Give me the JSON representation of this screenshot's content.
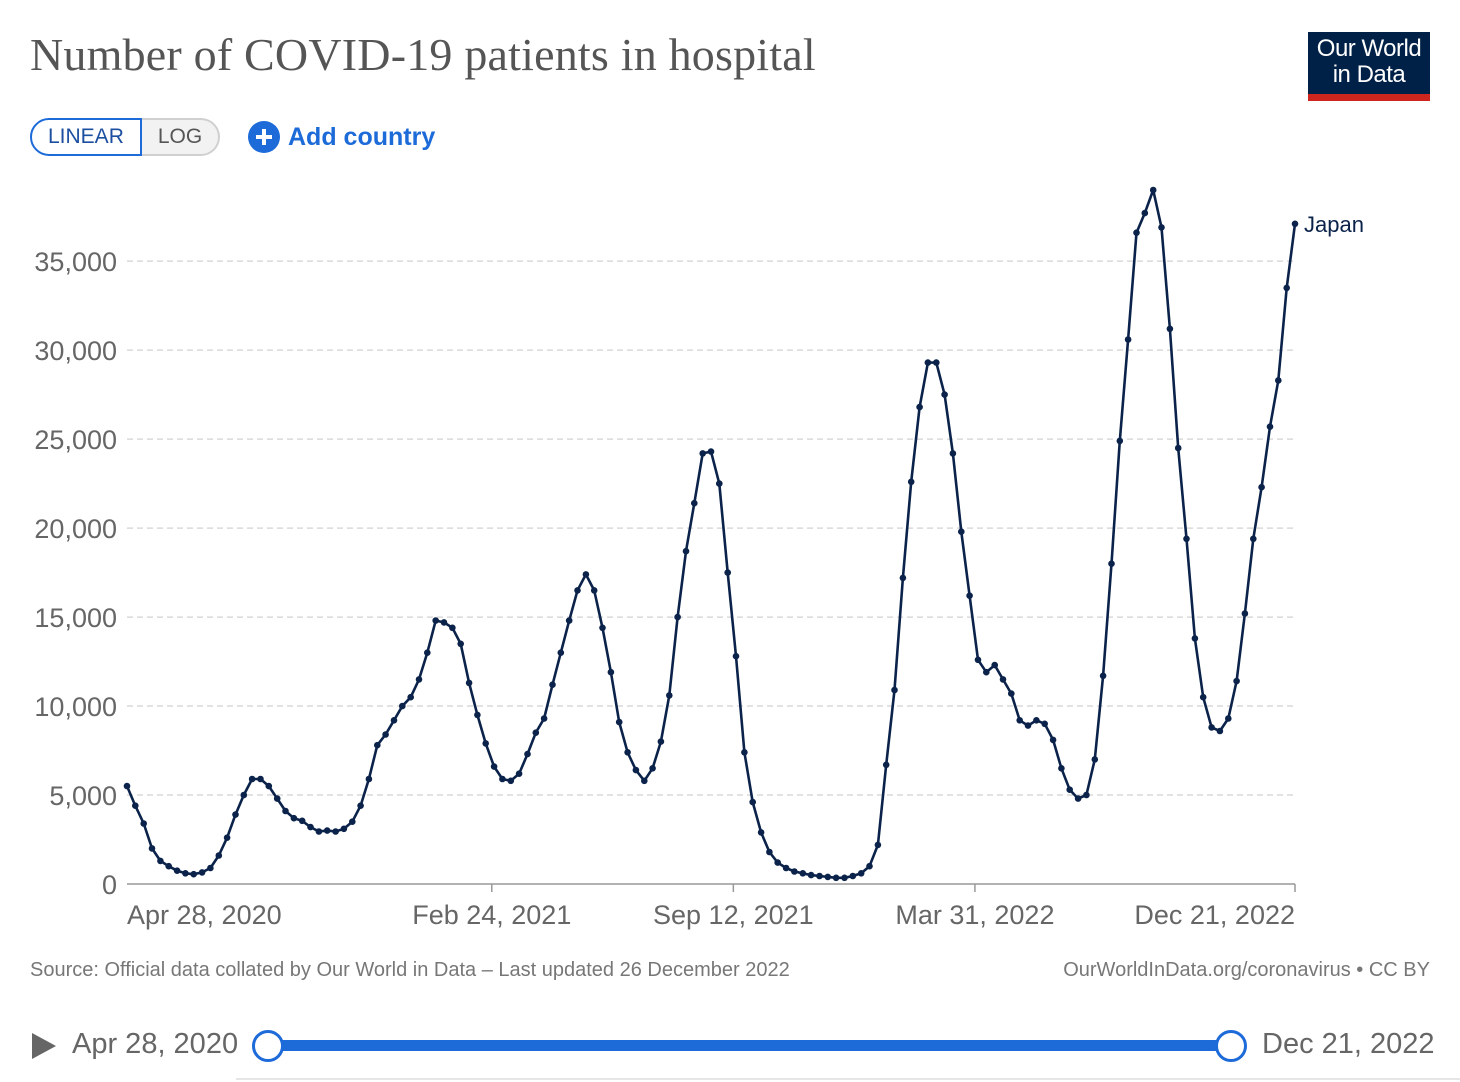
{
  "header": {
    "title": "Number of COVID-19 patients in hospital",
    "logo_line1": "Our World",
    "logo_line2": "in Data"
  },
  "controls": {
    "linear_label": "LINEAR",
    "log_label": "LOG",
    "selected_scale": "linear",
    "add_country_label": "Add country"
  },
  "colors": {
    "line": "#0b234a",
    "accent": "#1d6ad9",
    "logo_bg": "#002147",
    "logo_bar": "#ce261e"
  },
  "chart_data": {
    "type": "line",
    "title": "Number of COVID-19 patients in hospital",
    "xlabel": "",
    "ylabel": "",
    "x_tick_labels": [
      "Apr 28, 2020",
      "Feb 24, 2021",
      "Sep 12, 2021",
      "Mar 31, 2022",
      "Dec 21, 2022"
    ],
    "y_tick_labels": [
      "0",
      "5,000",
      "10,000",
      "15,000",
      "20,000",
      "25,000",
      "30,000",
      "35,000"
    ],
    "y_ticks": [
      0,
      5000,
      10000,
      15000,
      20000,
      25000,
      30000,
      35000
    ],
    "ylim": [
      0,
      39000
    ],
    "xlim": [
      "2020-04-28",
      "2022-12-21"
    ],
    "grid": "horizontal dashed",
    "marker": "dots",
    "series": [
      {
        "name": "Japan",
        "x_start": "2020-04-28",
        "x_step_days": 7,
        "values": [
          5500,
          4400,
          3400,
          2000,
          1300,
          1000,
          750,
          600,
          550,
          650,
          900,
          1600,
          2600,
          3900,
          5000,
          5900,
          5900,
          5500,
          4800,
          4100,
          3700,
          3550,
          3200,
          2950,
          3000,
          2950,
          3100,
          3500,
          4400,
          5900,
          7800,
          8400,
          9200,
          10000,
          10500,
          11500,
          13000,
          14800,
          14700,
          14400,
          13500,
          11300,
          9500,
          7900,
          6600,
          5900,
          5800,
          6200,
          7300,
          8500,
          9300,
          11200,
          13000,
          14800,
          16500,
          17400,
          16500,
          14400,
          11900,
          9100,
          7400,
          6400,
          5800,
          6500,
          8000,
          10600,
          15000,
          18700,
          21400,
          24200,
          24300,
          22500,
          17500,
          12800,
          7400,
          4600,
          2900,
          1800,
          1200,
          900,
          700,
          600,
          500,
          450,
          400,
          350,
          350,
          450,
          600,
          1000,
          2200,
          6700,
          10900,
          17200,
          22600,
          26800,
          29300,
          29300,
          27500,
          24200,
          19800,
          16200,
          12600,
          11900,
          12300,
          11500,
          10700,
          9200,
          8900,
          9200,
          9000,
          8100,
          6500,
          5300,
          4800,
          5000,
          7000,
          11700,
          18000,
          24900,
          30600,
          36600,
          37700,
          39000,
          36900,
          31200,
          24500,
          19400,
          13800,
          10500,
          8800,
          8600,
          9300,
          11400,
          15200,
          19400,
          22300,
          25700,
          28300,
          33500,
          37100
        ]
      }
    ]
  },
  "footer": {
    "source": "Source: Official data collated by Our World in Data – Last updated 26 December 2022",
    "attribution": "OurWorldInData.org/coronavirus • CC BY"
  },
  "timeline": {
    "start_label": "Apr 28, 2020",
    "end_label": "Dec 21, 2022"
  }
}
